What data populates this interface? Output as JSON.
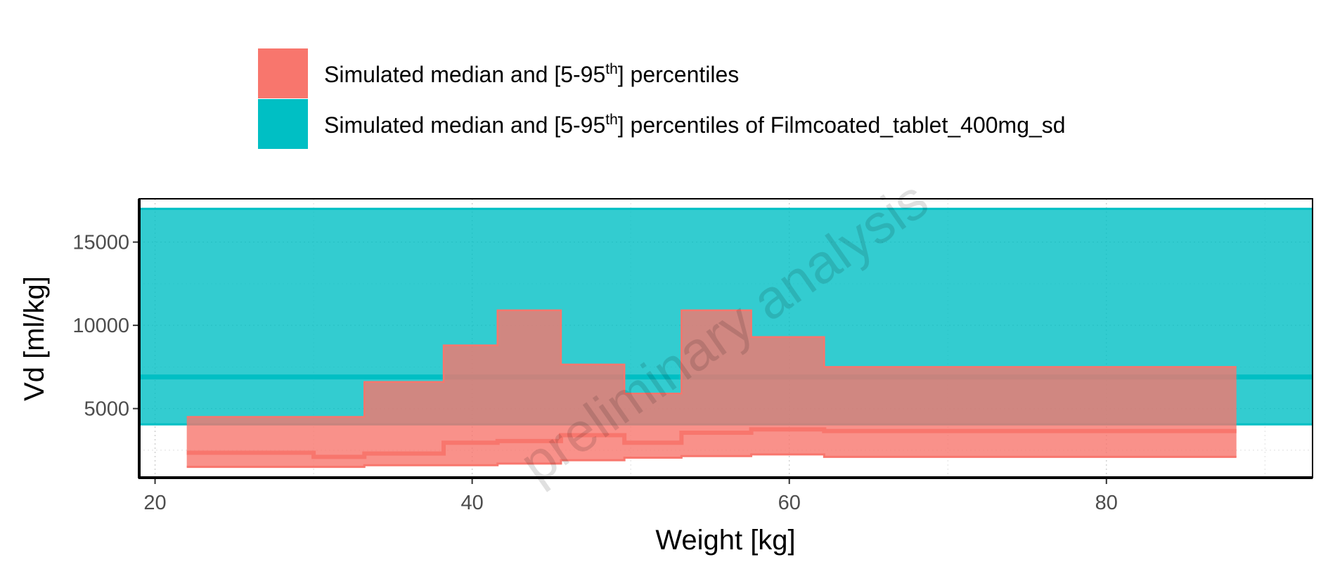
{
  "chart_data": {
    "type": "area",
    "xlabel": "Weight [kg]",
    "ylabel": "Vd [ml/kg]",
    "xlim": [
      19,
      93
    ],
    "ylim": [
      850,
      17600
    ],
    "x_ticks": [
      20,
      40,
      60,
      80
    ],
    "y_ticks": [
      5000,
      10000,
      15000
    ],
    "grid": true,
    "legend_position": "top",
    "watermark": "preliminary analysis",
    "colors": {
      "simulated": "#F8766D",
      "reference": "#00BFC4"
    },
    "legend": [
      {
        "pre": "Simulated median and [5-95",
        "sup": "th",
        "post": "] percentiles"
      },
      {
        "pre": "Simulated median and [5-95",
        "sup": "th",
        "post": "] percentiles of Filmcoated_tablet_400mg_sd"
      }
    ],
    "series": [
      {
        "name": "Simulated median and [5-95th] percentiles",
        "kind": "step-ribbon",
        "bins": [
          {
            "x0": 22,
            "x1": 30,
            "low": 1500,
            "median": 2350,
            "high": 4500
          },
          {
            "x0": 30,
            "x1": 33.2,
            "low": 1500,
            "median": 2100,
            "high": 4500
          },
          {
            "x0": 33.2,
            "x1": 38.2,
            "low": 1600,
            "median": 2300,
            "high": 6600
          },
          {
            "x0": 38.2,
            "x1": 41.6,
            "low": 1600,
            "median": 2950,
            "high": 8800
          },
          {
            "x0": 41.6,
            "x1": 45.6,
            "low": 1700,
            "median": 3050,
            "high": 10900
          },
          {
            "x0": 45.6,
            "x1": 49.6,
            "low": 1900,
            "median": 3400,
            "high": 7650
          },
          {
            "x0": 49.6,
            "x1": 53.2,
            "low": 2050,
            "median": 2950,
            "high": 5900
          },
          {
            "x0": 53.2,
            "x1": 57.6,
            "low": 2150,
            "median": 3550,
            "high": 10900
          },
          {
            "x0": 57.6,
            "x1": 62.2,
            "low": 2250,
            "median": 3750,
            "high": 9300
          },
          {
            "x0": 62.2,
            "x1": 88.2,
            "low": 2100,
            "median": 3650,
            "high": 7500
          }
        ]
      },
      {
        "name": "Simulated median and [5-95th] percentiles of Filmcoated_tablet_400mg_sd",
        "kind": "constant-band",
        "low": 4050,
        "median": 6900,
        "high": 17000
      }
    ]
  }
}
